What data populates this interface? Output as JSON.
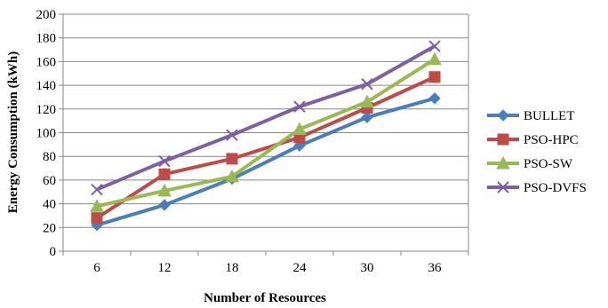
{
  "chart_data": {
    "type": "line",
    "title": "",
    "xlabel": "Number of Resources",
    "ylabel": "Energy Consumption (kWh)",
    "categories": [
      "6",
      "12",
      "18",
      "24",
      "30",
      "36"
    ],
    "ylim": [
      0,
      200
    ],
    "ytick_step": 20,
    "grid": true,
    "legend_position": "right",
    "series": [
      {
        "name": "BULLET",
        "color": "#4a7ebb",
        "marker": "diamond",
        "values": [
          22,
          39,
          61,
          89,
          113,
          129
        ]
      },
      {
        "name": "PSO-HPC",
        "color": "#be4b48",
        "marker": "square",
        "values": [
          28,
          65,
          78,
          96,
          121,
          147
        ]
      },
      {
        "name": "PSO-SW",
        "color": "#98b954",
        "marker": "triangle",
        "values": [
          38,
          51,
          63,
          103,
          126,
          162
        ]
      },
      {
        "name": "PSO-DVFS",
        "color": "#7d60a0",
        "marker": "x",
        "values": [
          52,
          76,
          98,
          122,
          141,
          173
        ]
      }
    ]
  }
}
